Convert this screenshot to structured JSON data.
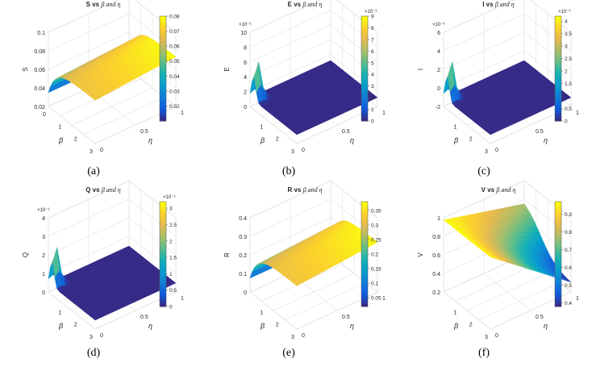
{
  "colors": {
    "low": "#352a87",
    "mid": "#21b8a4",
    "high": "#f9fb0e",
    "grid": "#e6e6e6",
    "axis": "#262626"
  },
  "chart_data": [
    {
      "type": "surface",
      "caption": "(a)",
      "title_main": "S vs",
      "title_greek": "β and η",
      "zlabel": "S",
      "xlabel": "β",
      "ylabel": "η",
      "xticks": [
        "0",
        "1",
        "2",
        "3"
      ],
      "yticks": [
        "0",
        "0.5",
        "1"
      ],
      "zticks": [
        "0.02",
        "0.04",
        "0.06",
        "0.08",
        "0.1"
      ],
      "zexp": "",
      "cbar_ticks": [
        "0.02",
        "0.03",
        "0.04",
        "0.05",
        "0.06",
        "0.07",
        "0.08"
      ],
      "cbar_exp": "",
      "range_min": 0.01,
      "range_max": 0.08,
      "shape": "plateau"
    },
    {
      "type": "surface",
      "caption": "(b)",
      "title_main": "E vs",
      "title_greek": "β and η",
      "zlabel": "E",
      "xlabel": "β",
      "ylabel": "η",
      "xticks": [
        "1",
        "2",
        "3"
      ],
      "yticks": [
        "0",
        "0.5",
        "1"
      ],
      "zticks": [
        "0",
        "2",
        "4",
        "6",
        "8",
        "10"
      ],
      "zexp": "×10⁻³",
      "cbar_ticks": [
        "0",
        "1",
        "2",
        "3",
        "4",
        "5",
        "6",
        "7",
        "8",
        "9"
      ],
      "cbar_exp": "×10⁻³",
      "range_min": 0,
      "range_max": 0.009,
      "shape": "spike"
    },
    {
      "type": "surface",
      "caption": "(c)",
      "title_main": "I vs",
      "title_greek": "β and η",
      "zlabel": "I",
      "xlabel": "β",
      "ylabel": "η",
      "xticks": [
        "1",
        "2",
        "3"
      ],
      "yticks": [
        "0",
        "0.5",
        "1"
      ],
      "zticks": [
        "-2",
        "0",
        "2",
        "4",
        "6"
      ],
      "zexp": "×10⁻³",
      "cbar_ticks": [
        "0",
        "0.5",
        "1",
        "1.5",
        "2",
        "2.5",
        "3",
        "3.5",
        "4"
      ],
      "cbar_exp": "×10⁻³",
      "range_min": 0,
      "range_max": 0.0042,
      "shape": "spike"
    },
    {
      "type": "surface",
      "caption": "(d)",
      "title_main": "Q vs",
      "title_greek": "β and η",
      "zlabel": "Q",
      "xlabel": "β",
      "ylabel": "η",
      "xticks": [
        "1",
        "2",
        "3"
      ],
      "yticks": [
        "0",
        "0.5",
        "1"
      ],
      "zticks": [
        "0",
        "1",
        "2",
        "3",
        "4"
      ],
      "zexp": "×10⁻³",
      "cbar_ticks": [
        "0",
        "0.5",
        "1",
        "1.5",
        "2",
        "2.5",
        "3"
      ],
      "cbar_exp": "×10⁻³",
      "range_min": 0,
      "range_max": 0.0032,
      "shape": "spike"
    },
    {
      "type": "surface",
      "caption": "(e)",
      "title_main": "R vs",
      "title_greek": "β and η",
      "zlabel": "R",
      "xlabel": "β",
      "ylabel": "η",
      "xticks": [
        "1",
        "2",
        "3"
      ],
      "yticks": [
        "0",
        "0.5",
        "1"
      ],
      "zticks": [
        "0",
        "0.1",
        "0.2",
        "0.3",
        "0.4"
      ],
      "zexp": "",
      "cbar_ticks": [
        "0.05",
        "0.1",
        "0.15",
        "0.2",
        "0.25",
        "0.3",
        "0.35"
      ],
      "cbar_exp": "",
      "range_min": 0.02,
      "range_max": 0.38,
      "shape": "plateau"
    },
    {
      "type": "surface",
      "caption": "(f)",
      "title_main": "V vs",
      "title_greek": "β and η",
      "zlabel": "V",
      "xlabel": "β",
      "ylabel": "η",
      "xticks": [
        "1",
        "2",
        "3"
      ],
      "yticks": [
        "0",
        "0.5",
        "1"
      ],
      "zticks": [
        "0.2",
        "0.4",
        "0.6",
        "0.8",
        "1"
      ],
      "zexp": "",
      "cbar_ticks": [
        "0.4",
        "0.5",
        "0.6",
        "0.7",
        "0.8",
        "0.9"
      ],
      "cbar_exp": "",
      "range_min": 0.38,
      "range_max": 0.97,
      "shape": "slope"
    }
  ]
}
